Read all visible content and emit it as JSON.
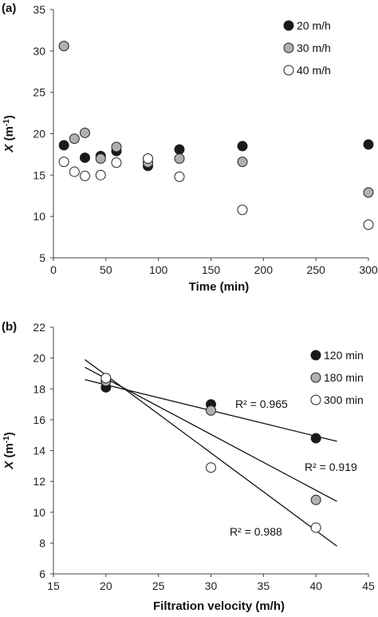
{
  "chart_data": [
    {
      "type": "scatter",
      "panel_label": "(a)",
      "xlabel": "Time (min)",
      "ylabel_main": "X",
      "ylabel_unit": " (m",
      "ylabel_exp": "-1",
      "ylabel_close": ")",
      "xlim": [
        0,
        300
      ],
      "ylim": [
        5,
        35
      ],
      "xticks": [
        0,
        50,
        100,
        150,
        200,
        250,
        300
      ],
      "xtick_labels": [
        "0",
        "50",
        "100",
        "150",
        "200",
        "250",
        "300"
      ],
      "yticks": [
        5,
        10,
        15,
        20,
        25,
        30,
        35
      ],
      "ytick_labels": [
        "5",
        "10",
        "15",
        "20",
        "25",
        "30",
        "35"
      ],
      "grid": false,
      "legend_position": "top-right",
      "series": [
        {
          "name": "20 m/h",
          "color": "#1a1a1a",
          "x": [
            10,
            30,
            45,
            60,
            90,
            120,
            180,
            300
          ],
          "y": [
            18.6,
            17.1,
            17.3,
            17.9,
            16.1,
            18.1,
            18.5,
            18.7
          ]
        },
        {
          "name": "30 m/h",
          "color": "#b0b0b0",
          "x": [
            10,
            20,
            30,
            45,
            60,
            90,
            120,
            180,
            300
          ],
          "y": [
            30.6,
            19.4,
            20.1,
            17.0,
            18.4,
            16.5,
            17.0,
            16.6,
            12.9
          ]
        },
        {
          "name": "40 m/h",
          "color": "#ffffff",
          "x": [
            10,
            20,
            30,
            45,
            60,
            90,
            120,
            180,
            300
          ],
          "y": [
            16.6,
            15.4,
            14.9,
            15.0,
            16.5,
            17.0,
            14.8,
            10.8,
            9.0
          ]
        }
      ]
    },
    {
      "type": "scatter",
      "panel_label": "(b)",
      "xlabel": "Filtration velocity (m/h)",
      "ylabel_main": "X",
      "ylabel_unit": " (m",
      "ylabel_exp": "-1",
      "ylabel_close": ")",
      "xlim": [
        15,
        45
      ],
      "ylim": [
        6,
        22
      ],
      "xticks": [
        15,
        20,
        25,
        30,
        35,
        40,
        45
      ],
      "xtick_labels": [
        "15",
        "20",
        "25",
        "30",
        "35",
        "40",
        "45"
      ],
      "yticks": [
        6,
        8,
        10,
        12,
        14,
        16,
        18,
        20,
        22
      ],
      "ytick_labels": [
        "6",
        "8",
        "10",
        "12",
        "14",
        "16",
        "18",
        "20",
        "22"
      ],
      "grid": false,
      "legend_position": "top-right",
      "series": [
        {
          "name": "120 min",
          "color": "#1a1a1a",
          "x": [
            20,
            30,
            40
          ],
          "y": [
            18.1,
            17.0,
            14.8
          ],
          "fit": {
            "x": [
              18,
              42
            ],
            "y": [
              18.6,
              14.6
            ],
            "r2": "R² = 0.965"
          }
        },
        {
          "name": "180 min",
          "color": "#b0b0b0",
          "x": [
            20,
            30,
            40
          ],
          "y": [
            18.5,
            16.6,
            10.8
          ],
          "fit": {
            "x": [
              18,
              42
            ],
            "y": [
              19.4,
              10.7
            ],
            "r2": "R² = 0.919"
          }
        },
        {
          "name": "300 min",
          "color": "#ffffff",
          "x": [
            20,
            30,
            40
          ],
          "y": [
            18.7,
            12.9,
            9.0
          ],
          "fit": {
            "x": [
              18,
              42
            ],
            "y": [
              19.9,
              7.8
            ],
            "r2": "R² = 0.988"
          }
        }
      ]
    }
  ]
}
